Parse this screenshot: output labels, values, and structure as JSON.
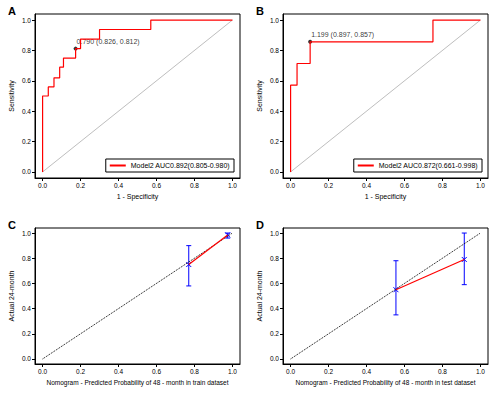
{
  "chart_data": [
    {
      "type": "roc",
      "title": "A",
      "x_label": "1 - Specificity",
      "y_label": "Sensitivity",
      "xlim": [
        -0.04,
        1.04
      ],
      "ylim": [
        -0.04,
        1.04
      ],
      "xticks": [
        {
          "value": 0,
          "label": "0.0"
        },
        {
          "value": 0.2,
          "label": "0.2"
        },
        {
          "value": 0.4,
          "label": "0.4"
        },
        {
          "value": 0.6,
          "label": "0.6"
        },
        {
          "value": 0.8,
          "label": "0.8"
        },
        {
          "value": 1,
          "label": "1.0"
        }
      ],
      "yticks": [
        {
          "value": 0,
          "label": "0.0"
        },
        {
          "value": 0.2,
          "label": "0.2"
        },
        {
          "value": 0.4,
          "label": "0.4"
        },
        {
          "value": 0.6,
          "label": "0.6"
        },
        {
          "value": 0.8,
          "label": "0.8"
        },
        {
          "value": 1,
          "label": "1.0"
        }
      ],
      "legend": "bottom-right",
      "series": [
        {
          "name": "Model2 AUC0.892(0.805-0.980)",
          "color": "#ff0000",
          "x": [
            0,
            0,
            0.03,
            0.03,
            0.06,
            0.06,
            0.09,
            0.09,
            0.11,
            0.11,
            0.14,
            0.14,
            0.174,
            0.174,
            0.2,
            0.2,
            0.3,
            0.3,
            0.57,
            0.57,
            1.0
          ],
          "values": [
            0,
            0.5,
            0.5,
            0.56,
            0.56,
            0.62,
            0.62,
            0.69,
            0.69,
            0.75,
            0.75,
            0.75,
            0.75,
            0.812,
            0.812,
            0.875,
            0.875,
            0.938,
            0.938,
            1.0,
            1.0
          ]
        }
      ],
      "reference_line": {
        "x": [
          0,
          1
        ],
        "values": [
          0,
          1
        ],
        "color": "#bebebe",
        "line_style": "solid"
      },
      "annotations": [
        {
          "x": 0.174,
          "y": 0.812,
          "text": "0.790 (0.826, 0.812)"
        }
      ]
    },
    {
      "type": "roc",
      "title": "B",
      "x_label": "1 - Specificity",
      "y_label": "Sensitivity",
      "xlim": [
        -0.04,
        1.04
      ],
      "ylim": [
        -0.04,
        1.04
      ],
      "xticks": [
        {
          "value": 0,
          "label": "0.0"
        },
        {
          "value": 0.2,
          "label": "0.2"
        },
        {
          "value": 0.4,
          "label": "0.4"
        },
        {
          "value": 0.6,
          "label": "0.6"
        },
        {
          "value": 0.8,
          "label": "0.8"
        },
        {
          "value": 1,
          "label": "1.0"
        }
      ],
      "yticks": [
        {
          "value": 0,
          "label": "0.0"
        },
        {
          "value": 0.2,
          "label": "0.2"
        },
        {
          "value": 0.4,
          "label": "0.4"
        },
        {
          "value": 0.6,
          "label": "0.6"
        },
        {
          "value": 0.8,
          "label": "0.8"
        },
        {
          "value": 1,
          "label": "1.0"
        }
      ],
      "legend": "bottom-right",
      "series": [
        {
          "name": "Model2 AUC0.872(0.661-0.998)",
          "color": "#ff0000",
          "x": [
            0,
            0,
            0.034,
            0.034,
            0.103,
            0.103,
            0.75,
            0.75,
            1.0
          ],
          "values": [
            0,
            0.571,
            0.571,
            0.714,
            0.714,
            0.857,
            0.857,
            1.0,
            1.0
          ]
        }
      ],
      "reference_line": {
        "x": [
          0,
          1
        ],
        "values": [
          0,
          1
        ],
        "color": "#bebebe",
        "line_style": "solid"
      },
      "annotations": [
        {
          "x": 0.103,
          "y": 0.857,
          "text": "1.199 (0.897, 0.857)"
        }
      ]
    },
    {
      "type": "calibration",
      "title": "C",
      "x_label": "Nomogram - Predicted Probability of 48 - month in train dataset",
      "y_label": "Actual 24-month",
      "xlim": [
        -0.04,
        1.04
      ],
      "ylim": [
        -0.04,
        1.04
      ],
      "xticks": [
        {
          "value": 0,
          "label": "0.0"
        },
        {
          "value": 0.2,
          "label": "0.2"
        },
        {
          "value": 0.4,
          "label": "0.4"
        },
        {
          "value": 0.6,
          "label": "0.6"
        },
        {
          "value": 0.8,
          "label": "0.8"
        },
        {
          "value": 1,
          "label": "1.0"
        }
      ],
      "yticks": [
        {
          "value": 0,
          "label": "0.0"
        },
        {
          "value": 0.2,
          "label": "0.2"
        },
        {
          "value": 0.4,
          "label": "0.4"
        },
        {
          "value": 0.6,
          "label": "0.6"
        },
        {
          "value": 0.8,
          "label": "0.8"
        },
        {
          "value": 1,
          "label": "1.0"
        }
      ],
      "series": [
        {
          "color": "#ff0000",
          "marker": "x",
          "x": [
            0.77,
            0.975
          ],
          "values": [
            0.75,
            0.985
          ],
          "error_bars": {
            "lower": [
              0.58,
              0.96
            ],
            "upper": [
              0.9,
              1.0
            ],
            "color": "#0000ff"
          }
        }
      ],
      "reference_line": {
        "x": [
          0,
          1
        ],
        "values": [
          0,
          1
        ],
        "color": "#000000",
        "line_style": "dotted"
      }
    },
    {
      "type": "calibration",
      "title": "D",
      "x_label": "Nomogram - Predicted Probability of 48 - month in test dataset",
      "y_label": "Actual 24-month",
      "xlim": [
        -0.04,
        1.04
      ],
      "ylim": [
        -0.04,
        1.04
      ],
      "xticks": [
        {
          "value": 0,
          "label": "0.0"
        },
        {
          "value": 0.2,
          "label": "0.2"
        },
        {
          "value": 0.4,
          "label": "0.4"
        },
        {
          "value": 0.6,
          "label": "0.6"
        },
        {
          "value": 0.8,
          "label": "0.8"
        },
        {
          "value": 1,
          "label": "1.0"
        }
      ],
      "yticks": [
        {
          "value": 0,
          "label": "0.0"
        },
        {
          "value": 0.2,
          "label": "0.2"
        },
        {
          "value": 0.4,
          "label": "0.4"
        },
        {
          "value": 0.6,
          "label": "0.6"
        },
        {
          "value": 0.8,
          "label": "0.8"
        },
        {
          "value": 1,
          "label": "1.0"
        }
      ],
      "series": [
        {
          "color": "#ff0000",
          "marker": "x",
          "x": [
            0.555,
            0.915
          ],
          "values": [
            0.55,
            0.79
          ],
          "error_bars": {
            "lower": [
              0.35,
              0.59
            ],
            "upper": [
              0.78,
              1.0
            ],
            "color": "#0000ff"
          }
        }
      ],
      "reference_line": {
        "x": [
          0,
          1
        ],
        "values": [
          0,
          1
        ],
        "color": "#000000",
        "line_style": "dotted"
      }
    }
  ]
}
